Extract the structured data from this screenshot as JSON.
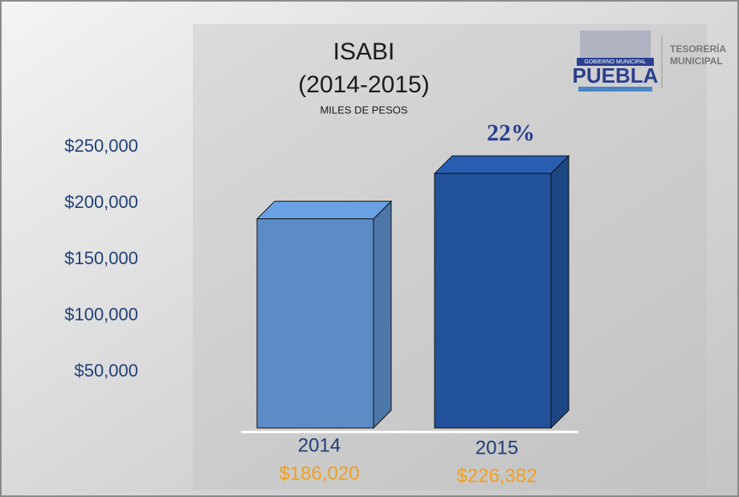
{
  "chart_data": {
    "type": "bar3d",
    "title": "ISABI",
    "subtitle": "(2014-2015)",
    "unit_note": "MILES DE PESOS",
    "annotation": "22%",
    "logo": {
      "small": "GOBIERNO MUNICIPAL",
      "name": "PUEBLA",
      "dept_1": "TESORERÍA",
      "dept_2": "MUNICIPAL"
    },
    "categories": [
      "2014",
      "2015"
    ],
    "values": [
      186020,
      226382
    ],
    "value_labels": [
      "$186,020",
      "$226,382"
    ],
    "colors": [
      "#5b8cc6",
      "#22529b"
    ],
    "ylim": [
      0,
      250000
    ],
    "yticks": [
      {
        "value": 50000,
        "label": "$50,000"
      },
      {
        "value": 100000,
        "label": "$100,000"
      },
      {
        "value": 150000,
        "label": "$150,000"
      },
      {
        "value": 200000,
        "label": "$200,000"
      },
      {
        "value": 250000,
        "label": "$250,000"
      }
    ]
  }
}
